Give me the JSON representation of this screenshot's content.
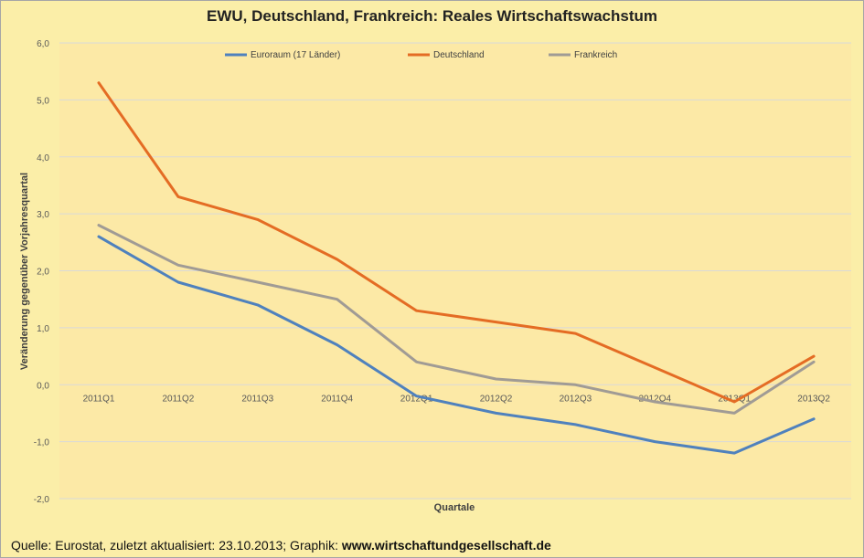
{
  "chart_data": {
    "type": "line",
    "title": "EWU, Deutschland, Frankreich: Reales Wirtschaftswachstum",
    "xlabel": "Quartale",
    "ylabel": "Veränderung gegenüber Vorjahresquartal",
    "categories": [
      "2011Q1",
      "2011Q2",
      "2011Q3",
      "2011Q4",
      "2012Q1",
      "2012Q2",
      "2012Q3",
      "2012Q4",
      "2013Q1",
      "2013Q2"
    ],
    "yticks": [
      "6,0",
      "5,0",
      "4,0",
      "3,0",
      "2,0",
      "1,0",
      "0,0",
      "-1,0",
      "-2,0"
    ],
    "ylim": [
      -2,
      6
    ],
    "grid": true,
    "legend_position": "top",
    "series": [
      {
        "name": "Euroraum (17 Länder)",
        "color": "#4f81bd",
        "values": [
          2.6,
          1.8,
          1.4,
          0.7,
          -0.2,
          -0.5,
          -0.7,
          -1.0,
          -1.2,
          -0.6
        ]
      },
      {
        "name": "Deutschland",
        "color": "#e46c24",
        "values": [
          5.3,
          3.3,
          2.9,
          2.2,
          1.3,
          1.1,
          0.9,
          0.3,
          -0.3,
          0.5
        ]
      },
      {
        "name": "Frankreich",
        "color": "#a09b95",
        "values": [
          2.8,
          2.1,
          1.8,
          1.5,
          0.4,
          0.1,
          0.0,
          -0.3,
          -0.5,
          0.4
        ]
      }
    ]
  },
  "footer": {
    "source_prefix": "Quelle: Eurostat, zuletzt aktualisiert: 23.10.2013; Graphik: ",
    "source_site": "www.wirtschaftundgesellschaft.de"
  }
}
